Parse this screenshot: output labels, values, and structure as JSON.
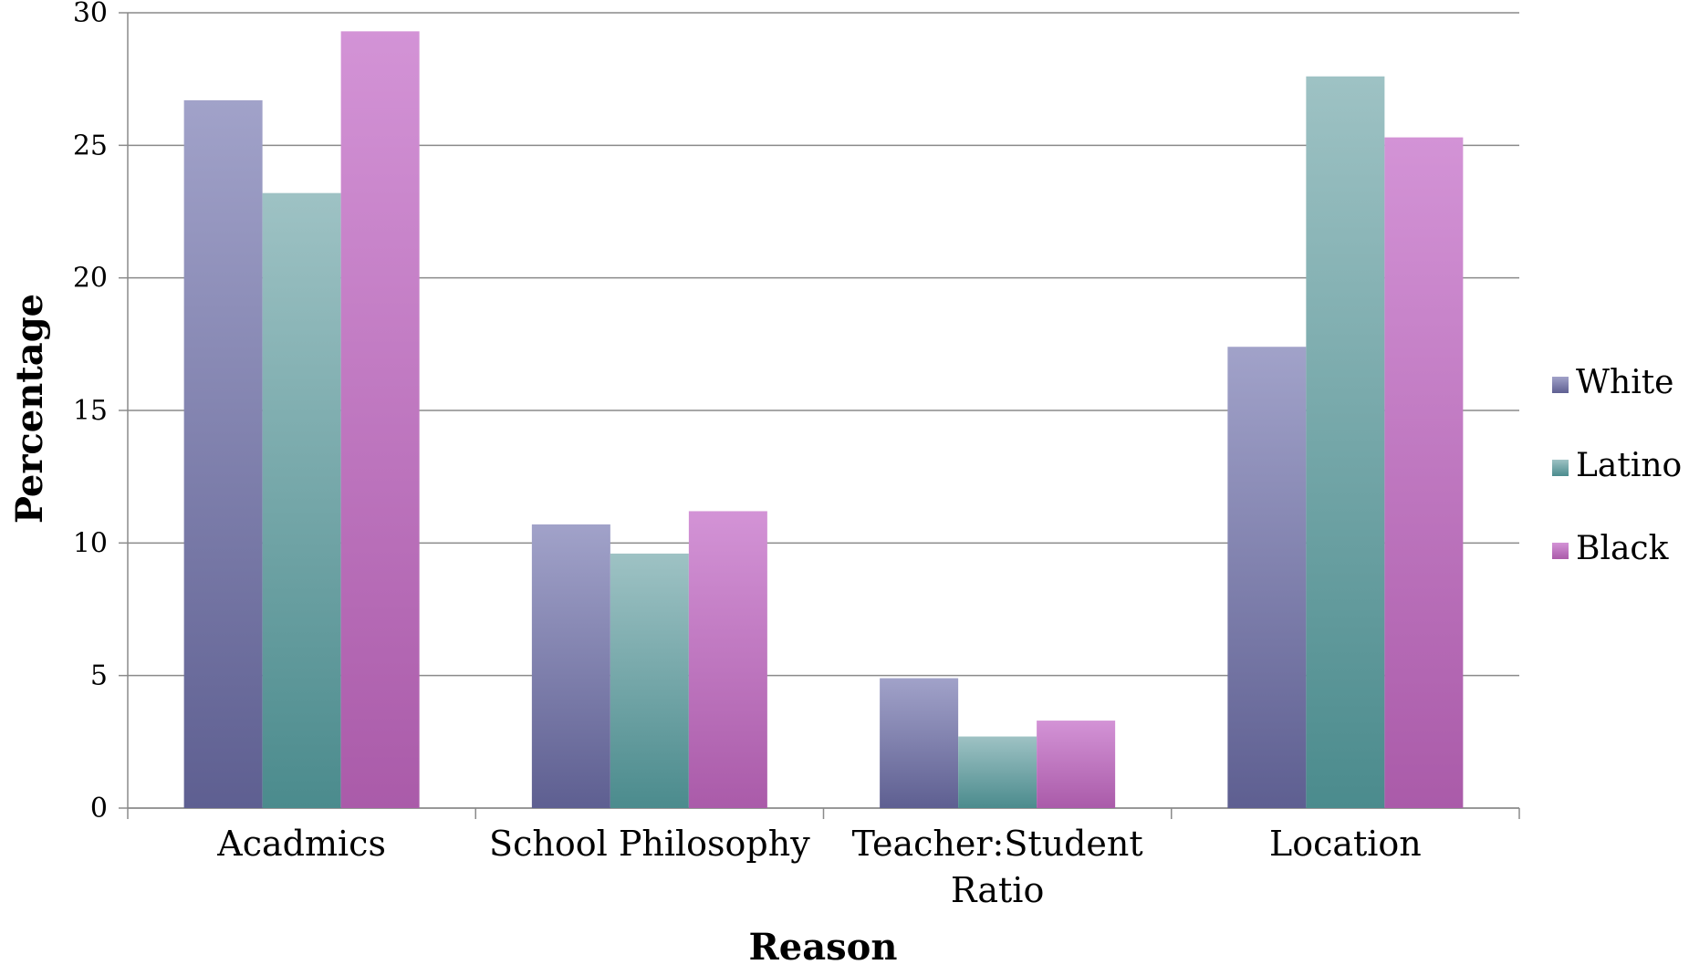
{
  "chart_data": {
    "type": "bar",
    "title": "",
    "xlabel": "Reason",
    "ylabel": "Percentage",
    "ylim": [
      0,
      30
    ],
    "yticks": [
      0,
      5,
      10,
      15,
      20,
      25,
      30
    ],
    "grid": true,
    "legend_position": "right",
    "categories": [
      [
        "Acadmics"
      ],
      [
        "School Philosophy"
      ],
      [
        "Teacher:Student",
        "Ratio"
      ],
      [
        "Location"
      ]
    ],
    "series": [
      {
        "name": "White",
        "values": [
          26.7,
          10.7,
          4.9,
          17.4
        ],
        "color_top": "#a1a2c9",
        "color_bottom": "#5e5f91"
      },
      {
        "name": "Latino",
        "values": [
          23.2,
          9.6,
          2.7,
          27.6
        ],
        "color_top": "#9ec2c4",
        "color_bottom": "#4b8b8d"
      },
      {
        "name": "Black",
        "values": [
          29.3,
          11.2,
          3.3,
          25.3
        ],
        "color_top": "#d393d6",
        "color_bottom": "#aa5ba9"
      }
    ]
  }
}
